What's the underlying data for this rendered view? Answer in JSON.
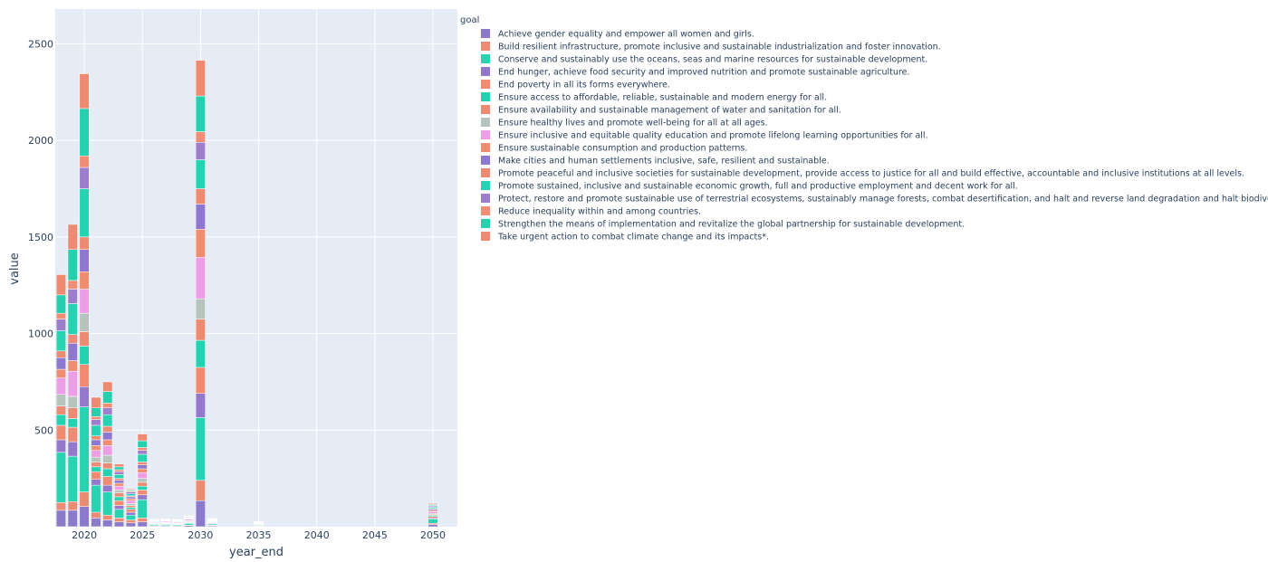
{
  "chart_data": {
    "type": "bar",
    "barmode": "stack",
    "xlabel": "year_end",
    "ylabel": "value",
    "xlim": [
      2017.5,
      2052.1
    ],
    "ylim": [
      0,
      2680
    ],
    "x_ticks": [
      2020,
      2025,
      2030,
      2035,
      2040,
      2045,
      2050
    ],
    "y_ticks": [
      500,
      1000,
      1500,
      2000,
      2500
    ],
    "legend_title": "goal",
    "legend_position": "right",
    "x": [
      2018,
      2019,
      2020,
      2021,
      2022,
      2023,
      2024,
      2025,
      2026,
      2027,
      2028,
      2029,
      2030,
      2031,
      2035,
      2050
    ],
    "series": [
      {
        "name": "Achieve gender equality and empower all women and girls.",
        "color": "#8b7ac9",
        "values": [
          85,
          85,
          105,
          45,
          35,
          25,
          20,
          25,
          4,
          4,
          4,
          6,
          135,
          5,
          3,
          12
        ]
      },
      {
        "name": "Build resilient infrastructure, promote inclusive and sustainable industrialization and foster innovation.",
        "color": "#eb8b73",
        "values": [
          40,
          45,
          75,
          30,
          25,
          20,
          15,
          20,
          2,
          2,
          2,
          3,
          105,
          3,
          2,
          6
        ]
      },
      {
        "name": "Conserve and sustainably use the oceans, seas and marine resources for sustainable development.",
        "color": "#27d3b0",
        "values": [
          260,
          235,
          440,
          140,
          120,
          45,
          25,
          95,
          6,
          6,
          5,
          8,
          325,
          6,
          4,
          22
        ]
      },
      {
        "name": "End hunger, achieve food security and improved nutrition and promote sustainable agriculture.",
        "color": "#9478cc",
        "values": [
          65,
          75,
          105,
          30,
          35,
          20,
          15,
          25,
          2,
          2,
          2,
          3,
          125,
          3,
          2,
          6
        ]
      },
      {
        "name": "End poverty in all its forms everywhere.",
        "color": "#f08a70",
        "values": [
          75,
          75,
          115,
          40,
          45,
          25,
          15,
          25,
          2,
          2,
          2,
          3,
          135,
          3,
          2,
          7
        ]
      },
      {
        "name": "Ensure access to affordable, reliable, sustainable and modern energy for all.",
        "color": "#22d2b0",
        "values": [
          55,
          45,
          95,
          25,
          40,
          20,
          10,
          20,
          2,
          2,
          2,
          3,
          140,
          2,
          2,
          6
        ]
      },
      {
        "name": "Ensure availability and sustainable management of water and sanitation for all.",
        "color": "#ed8a74",
        "values": [
          45,
          55,
          75,
          25,
          30,
          20,
          10,
          20,
          2,
          2,
          2,
          3,
          110,
          2,
          1,
          5
        ]
      },
      {
        "name": "Ensure healthy lives and promote well-being for all at all ages.",
        "color": "#b6c4bd",
        "values": [
          60,
          60,
          95,
          25,
          40,
          15,
          10,
          20,
          2,
          2,
          2,
          3,
          105,
          2,
          1,
          5
        ]
      },
      {
        "name": "Ensure inclusive and equitable quality education and promote lifelong learning opportunities for all.",
        "color": "#ee9ee6",
        "values": [
          85,
          130,
          125,
          35,
          50,
          20,
          15,
          30,
          4,
          5,
          4,
          6,
          215,
          3,
          2,
          9
        ]
      },
      {
        "name": "Ensure sustainable consumption and production patterns.",
        "color": "#ef8d70",
        "values": [
          45,
          55,
          90,
          25,
          30,
          15,
          10,
          20,
          2,
          2,
          2,
          3,
          145,
          2,
          1,
          6
        ]
      },
      {
        "name": "Make cities and human settlements inclusive, safe, resilient and sustainable.",
        "color": "#8e77ce",
        "values": [
          60,
          90,
          115,
          30,
          40,
          15,
          10,
          20,
          2,
          2,
          2,
          3,
          130,
          2,
          1,
          6
        ]
      },
      {
        "name": "Promote peaceful and inclusive societies for sustainable development, provide access to justice for all and build effective, accountable and inclusive institutions at all levels.",
        "color": "#ee8a74",
        "values": [
          35,
          45,
          65,
          20,
          30,
          10,
          5,
          15,
          1,
          1,
          1,
          2,
          80,
          1,
          1,
          4
        ]
      },
      {
        "name": "Promote sustained, inclusive and sustainable economic growth, full and productive employment and decent work for all.",
        "color": "#25d3b2",
        "values": [
          105,
          160,
          250,
          55,
          60,
          20,
          10,
          40,
          2,
          2,
          2,
          3,
          150,
          2,
          1,
          7
        ]
      },
      {
        "name": "Protect, restore and promote sustainable use of terrestrial ecosystems, sustainably manage forests, combat desertification, and halt and reverse land degradation and halt biodiversity loss.",
        "color": "#9d7ecc",
        "values": [
          60,
          75,
          110,
          30,
          35,
          15,
          10,
          20,
          2,
          2,
          2,
          3,
          90,
          2,
          1,
          6
        ]
      },
      {
        "name": "Reduce inequality within and among countries.",
        "color": "#ef8e75",
        "values": [
          30,
          45,
          60,
          15,
          25,
          10,
          5,
          15,
          1,
          1,
          1,
          2,
          55,
          1,
          1,
          3
        ]
      },
      {
        "name": "Strengthen the means of implementation and revitalize the global partnership for sustainable development.",
        "color": "#26d0ae",
        "values": [
          95,
          160,
          245,
          45,
          60,
          15,
          5,
          35,
          1,
          1,
          1,
          2,
          185,
          2,
          1,
          5
        ]
      },
      {
        "name": "Take urgent action to combat climate change and its impacts*.",
        "color": "#ee8a71",
        "values": [
          105,
          130,
          180,
          55,
          50,
          15,
          5,
          35,
          2,
          2,
          2,
          3,
          185,
          2,
          1,
          5
        ]
      }
    ]
  }
}
